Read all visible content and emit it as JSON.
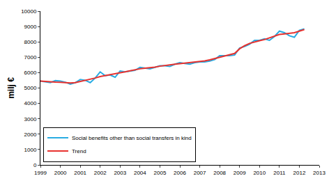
{
  "chart_data": {
    "type": "line",
    "y_label": "milj €",
    "x": [
      1999,
      1999.25,
      1999.5,
      1999.75,
      2000,
      2000.25,
      2000.5,
      2000.75,
      2001,
      2001.25,
      2001.5,
      2001.75,
      2002,
      2002.25,
      2002.5,
      2002.75,
      2003,
      2003.25,
      2003.5,
      2003.75,
      2004,
      2004.25,
      2004.5,
      2004.75,
      2005,
      2005.25,
      2005.5,
      2005.75,
      2006,
      2006.25,
      2006.5,
      2006.75,
      2007,
      2007.25,
      2007.5,
      2007.75,
      2008,
      2008.25,
      2008.5,
      2008.75,
      2009,
      2009.25,
      2009.5,
      2009.75,
      2010,
      2010.25,
      2010.5,
      2010.75,
      2011,
      2011.25,
      2011.5,
      2011.75,
      2012,
      2012.25
    ],
    "series": [
      {
        "name": "Social benefits other than social transfers in kind",
        "color": "#29abe2",
        "values": [
          5450,
          5400,
          5350,
          5480,
          5450,
          5380,
          5250,
          5350,
          5550,
          5500,
          5350,
          5650,
          6050,
          5800,
          5850,
          5700,
          6100,
          6050,
          6100,
          6150,
          6350,
          6300,
          6250,
          6350,
          6450,
          6450,
          6400,
          6550,
          6650,
          6600,
          6550,
          6650,
          6700,
          6700,
          6750,
          6850,
          7100,
          7100,
          7100,
          7150,
          7600,
          7700,
          7850,
          8100,
          8100,
          8200,
          8100,
          8350,
          8700,
          8600,
          8400,
          8300,
          8750,
          8850
        ]
      },
      {
        "name": "Trend",
        "color": "#e8322f",
        "values": [
          5450,
          5420,
          5390,
          5380,
          5370,
          5350,
          5330,
          5350,
          5420,
          5480,
          5550,
          5650,
          5750,
          5810,
          5860,
          5900,
          5970,
          6050,
          6120,
          6190,
          6250,
          6290,
          6320,
          6360,
          6420,
          6470,
          6510,
          6550,
          6580,
          6610,
          6640,
          6670,
          6710,
          6760,
          6830,
          6910,
          7000,
          7080,
          7150,
          7250,
          7550,
          7750,
          7900,
          8000,
          8080,
          8150,
          8250,
          8350,
          8480,
          8520,
          8550,
          8600,
          8700,
          8800
        ]
      }
    ],
    "xlim": [
      1999,
      2013
    ],
    "xticks": [
      1999,
      2000,
      2001,
      2002,
      2003,
      2004,
      2005,
      2006,
      2007,
      2008,
      2009,
      2010,
      2011,
      2012,
      2013
    ],
    "ylim": [
      0,
      10000
    ],
    "yticks": [
      0,
      1000,
      2000,
      3000,
      4000,
      5000,
      6000,
      7000,
      8000,
      9000,
      10000
    ],
    "grid": false,
    "legend": "bottom left"
  }
}
